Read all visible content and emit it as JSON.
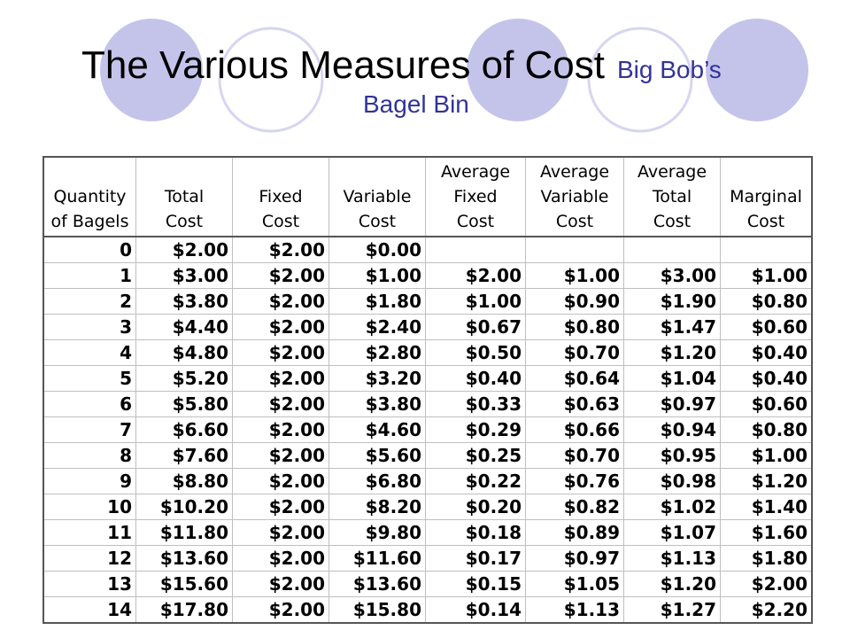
{
  "colors": {
    "circle_fill": "#c4c4ea",
    "circle_outline": "#d6d6ef",
    "subtitle": "#333399"
  },
  "title": {
    "main": "The Various Measures of Cost",
    "sub_line1": "Big Bob’s",
    "sub_line2": "Bagel Bin"
  },
  "table": {
    "headers": [
      "Quantity\nof Bagels",
      "Total\nCost",
      "Fixed\nCost",
      "Variable\nCost",
      "Average\nFixed\nCost",
      "Average\nVariable\nCost",
      "Average\nTotal\nCost",
      "Marginal\nCost"
    ],
    "rows": [
      [
        "0",
        "$2.00",
        "$2.00",
        "$0.00",
        "",
        "",
        "",
        ""
      ],
      [
        "1",
        "$3.00",
        "$2.00",
        "$1.00",
        "$2.00",
        "$1.00",
        "$3.00",
        "$1.00"
      ],
      [
        "2",
        "$3.80",
        "$2.00",
        "$1.80",
        "$1.00",
        "$0.90",
        "$1.90",
        "$0.80"
      ],
      [
        "3",
        "$4.40",
        "$2.00",
        "$2.40",
        "$0.67",
        "$0.80",
        "$1.47",
        "$0.60"
      ],
      [
        "4",
        "$4.80",
        "$2.00",
        "$2.80",
        "$0.50",
        "$0.70",
        "$1.20",
        "$0.40"
      ],
      [
        "5",
        "$5.20",
        "$2.00",
        "$3.20",
        "$0.40",
        "$0.64",
        "$1.04",
        "$0.40"
      ],
      [
        "6",
        "$5.80",
        "$2.00",
        "$3.80",
        "$0.33",
        "$0.63",
        "$0.97",
        "$0.60"
      ],
      [
        "7",
        "$6.60",
        "$2.00",
        "$4.60",
        "$0.29",
        "$0.66",
        "$0.94",
        "$0.80"
      ],
      [
        "8",
        "$7.60",
        "$2.00",
        "$5.60",
        "$0.25",
        "$0.70",
        "$0.95",
        "$1.00"
      ],
      [
        "9",
        "$8.80",
        "$2.00",
        "$6.80",
        "$0.22",
        "$0.76",
        "$0.98",
        "$1.20"
      ],
      [
        "10",
        "$10.20",
        "$2.00",
        "$8.20",
        "$0.20",
        "$0.82",
        "$1.02",
        "$1.40"
      ],
      [
        "11",
        "$11.80",
        "$2.00",
        "$9.80",
        "$0.18",
        "$0.89",
        "$1.07",
        "$1.60"
      ],
      [
        "12",
        "$13.60",
        "$2.00",
        "$11.60",
        "$0.17",
        "$0.97",
        "$1.13",
        "$1.80"
      ],
      [
        "13",
        "$15.60",
        "$2.00",
        "$13.60",
        "$0.15",
        "$1.05",
        "$1.20",
        "$2.00"
      ],
      [
        "14",
        "$17.80",
        "$2.00",
        "$15.80",
        "$0.14",
        "$1.13",
        "$1.27",
        "$2.20"
      ]
    ]
  }
}
